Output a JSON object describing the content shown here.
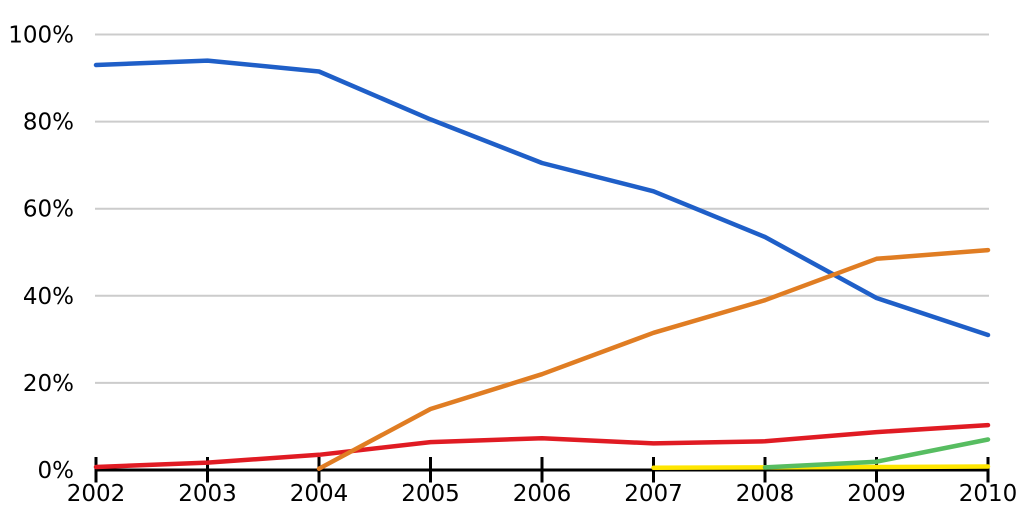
{
  "chart_data": {
    "type": "line",
    "title": "",
    "xlabel": "",
    "ylabel": "",
    "xlim": [
      2002,
      2010
    ],
    "ylim": [
      0,
      100
    ],
    "x_ticks": [
      2002,
      2003,
      2004,
      2005,
      2006,
      2007,
      2008,
      2009,
      2010
    ],
    "y_ticks": [
      0,
      20,
      40,
      60,
      80,
      100
    ],
    "y_tick_suffix": "%",
    "grid": "horizontal-only",
    "grid_color": "#cccccc",
    "axis_color": "#000000",
    "text_color": "#000000",
    "background_color": "#ffffff",
    "legend": "none",
    "series": [
      {
        "name": "blue",
        "color": "#1f5fc8",
        "points": [
          [
            2002,
            93
          ],
          [
            2003,
            94
          ],
          [
            2004,
            91.5
          ],
          [
            2005,
            80.5
          ],
          [
            2006,
            70.5
          ],
          [
            2007,
            64
          ],
          [
            2008,
            53.5
          ],
          [
            2009,
            39.5
          ],
          [
            2010,
            31
          ]
        ]
      },
      {
        "name": "red",
        "color": "#e01b23",
        "points": [
          [
            2002,
            0.7
          ],
          [
            2003,
            1.7
          ],
          [
            2004,
            3.5
          ],
          [
            2005,
            6.4
          ],
          [
            2006,
            7.3
          ],
          [
            2007,
            6.1
          ],
          [
            2008,
            6.6
          ],
          [
            2009,
            8.7
          ],
          [
            2010,
            10.3
          ]
        ]
      },
      {
        "name": "yellow",
        "color": "#ffe600",
        "points": [
          [
            2007,
            0.5
          ],
          [
            2008,
            0.6
          ],
          [
            2009,
            0.7
          ],
          [
            2010,
            0.8
          ]
        ]
      },
      {
        "name": "green",
        "color": "#57bd61",
        "points": [
          [
            2008,
            0.6
          ],
          [
            2009,
            1.9
          ],
          [
            2010,
            7
          ]
        ]
      },
      {
        "name": "orange",
        "color": "#e07d23",
        "points": [
          [
            2004,
            0.3
          ],
          [
            2005,
            14
          ],
          [
            2006,
            22
          ],
          [
            2007,
            31.5
          ],
          [
            2008,
            39
          ],
          [
            2009,
            48.5
          ],
          [
            2010,
            50.5
          ]
        ]
      }
    ]
  }
}
